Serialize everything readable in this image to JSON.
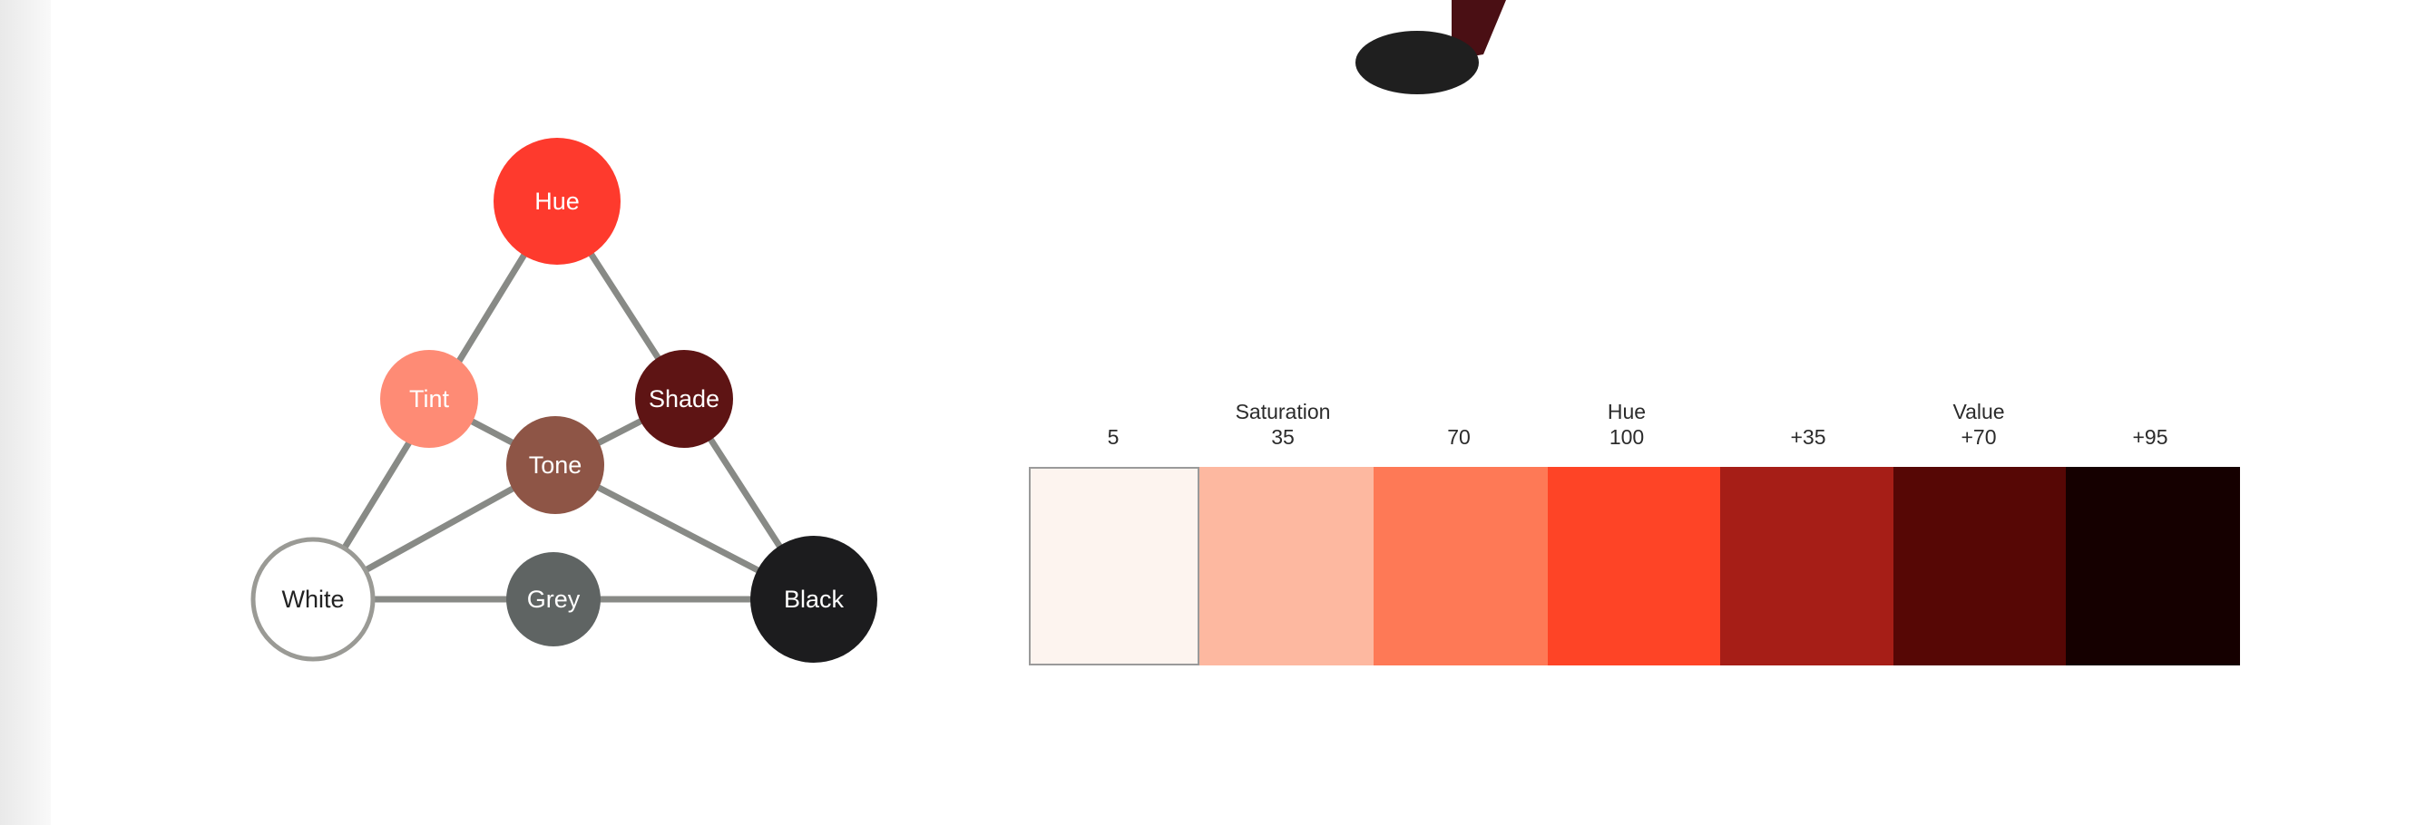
{
  "diagram": {
    "nodes": {
      "hue": {
        "label": "Hue",
        "fill": "#fe3a2d",
        "text_color": "#ffffff"
      },
      "tint": {
        "label": "Tint",
        "fill": "#fe8b75",
        "text_color": "#ffffff"
      },
      "shade": {
        "label": "Shade",
        "fill": "#5e1414",
        "text_color": "#ffffff"
      },
      "tone": {
        "label": "Tone",
        "fill": "#8e5546",
        "text_color": "#ffffff"
      },
      "white": {
        "label": "White",
        "fill": "#ffffff",
        "stroke": "#9a9a95",
        "text_color": "#222222"
      },
      "grey": {
        "label": "Grey",
        "fill": "#5f6463",
        "text_color": "#ffffff"
      },
      "black": {
        "label": "Black",
        "fill": "#1c1c1e",
        "text_color": "#ffffff"
      }
    },
    "connector_color": "#888a86"
  },
  "scale": {
    "group_labels": [
      "Saturation",
      "Hue",
      "Value"
    ],
    "steps": [
      {
        "label": "5",
        "color": "#fdf4ef"
      },
      {
        "label": "35",
        "color": "#fdb8a0"
      },
      {
        "label": "70",
        "color": "#fe7956"
      },
      {
        "label": "100",
        "color": "#fe4426"
      },
      {
        "label": "+35",
        "color": "#a61e17"
      },
      {
        "label": "+70",
        "color": "#560705"
      },
      {
        "label": "+95",
        "color": "#150000"
      }
    ]
  },
  "figure_fragment": {
    "body_color": "#4a0f14",
    "shoe_color": "#1f1f1f"
  }
}
